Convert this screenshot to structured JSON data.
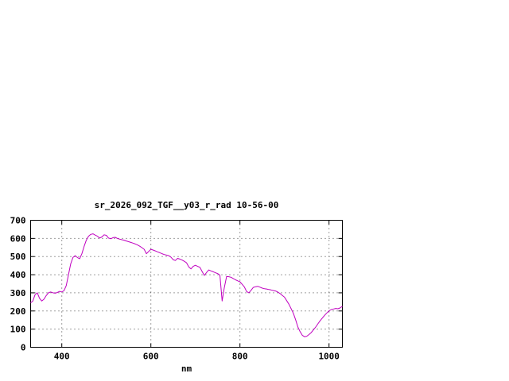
{
  "chart_data": {
    "type": "line",
    "title": "sr_2026_092_TGF__y03_r_rad 10-56-00",
    "xlabel": "nm",
    "ylabel": "",
    "xlim": [
      330,
      1030
    ],
    "ylim": [
      0,
      700
    ],
    "xticks": [
      400,
      600,
      800,
      1000
    ],
    "yticks": [
      0,
      100,
      200,
      300,
      400,
      500,
      600,
      700
    ],
    "grid": true,
    "grid_style": "dotted",
    "legend": "none",
    "line_color": "#c000c0",
    "grid_color": "#404040",
    "text_color": "#000000",
    "background_color": "#ffffff",
    "series": [
      {
        "name": "sr_2026_092_TGF__y03_r_rad",
        "points": [
          [
            330,
            245
          ],
          [
            335,
            255
          ],
          [
            340,
            290
          ],
          [
            345,
            300
          ],
          [
            350,
            270
          ],
          [
            355,
            255
          ],
          [
            360,
            265
          ],
          [
            365,
            285
          ],
          [
            370,
            300
          ],
          [
            375,
            305
          ],
          [
            380,
            300
          ],
          [
            385,
            298
          ],
          [
            390,
            302
          ],
          [
            395,
            308
          ],
          [
            400,
            305
          ],
          [
            405,
            312
          ],
          [
            410,
            340
          ],
          [
            415,
            400
          ],
          [
            420,
            460
          ],
          [
            425,
            495
          ],
          [
            430,
            505
          ],
          [
            435,
            495
          ],
          [
            440,
            488
          ],
          [
            445,
            515
          ],
          [
            450,
            555
          ],
          [
            455,
            590
          ],
          [
            460,
            612
          ],
          [
            465,
            622
          ],
          [
            470,
            625
          ],
          [
            475,
            618
          ],
          [
            480,
            612
          ],
          [
            485,
            602
          ],
          [
            490,
            608
          ],
          [
            495,
            620
          ],
          [
            500,
            617
          ],
          [
            505,
            602
          ],
          [
            510,
            598
          ],
          [
            515,
            604
          ],
          [
            520,
            606
          ],
          [
            525,
            600
          ],
          [
            530,
            596
          ],
          [
            535,
            593
          ],
          [
            540,
            590
          ],
          [
            545,
            586
          ],
          [
            550,
            582
          ],
          [
            555,
            578
          ],
          [
            560,
            574
          ],
          [
            565,
            569
          ],
          [
            570,
            564
          ],
          [
            575,
            557
          ],
          [
            580,
            549
          ],
          [
            585,
            540
          ],
          [
            590,
            516
          ],
          [
            595,
            528
          ],
          [
            600,
            540
          ],
          [
            605,
            536
          ],
          [
            610,
            531
          ],
          [
            615,
            526
          ],
          [
            620,
            521
          ],
          [
            625,
            516
          ],
          [
            630,
            511
          ],
          [
            635,
            508
          ],
          [
            640,
            505
          ],
          [
            645,
            497
          ],
          [
            650,
            483
          ],
          [
            655,
            478
          ],
          [
            660,
            490
          ],
          [
            665,
            486
          ],
          [
            670,
            481
          ],
          [
            675,
            474
          ],
          [
            680,
            466
          ],
          [
            685,
            443
          ],
          [
            690,
            432
          ],
          [
            695,
            446
          ],
          [
            700,
            452
          ],
          [
            705,
            446
          ],
          [
            710,
            441
          ],
          [
            715,
            418
          ],
          [
            720,
            396
          ],
          [
            725,
            412
          ],
          [
            730,
            426
          ],
          [
            735,
            421
          ],
          [
            740,
            416
          ],
          [
            745,
            411
          ],
          [
            750,
            406
          ],
          [
            755,
            398
          ],
          [
            760,
            255
          ],
          [
            765,
            330
          ],
          [
            770,
            390
          ],
          [
            775,
            389
          ],
          [
            780,
            386
          ],
          [
            785,
            379
          ],
          [
            790,
            372
          ],
          [
            795,
            366
          ],
          [
            800,
            361
          ],
          [
            805,
            347
          ],
          [
            810,
            332
          ],
          [
            815,
            307
          ],
          [
            820,
            300
          ],
          [
            825,
            314
          ],
          [
            830,
            330
          ],
          [
            835,
            334
          ],
          [
            840,
            336
          ],
          [
            845,
            331
          ],
          [
            850,
            326
          ],
          [
            855,
            323
          ],
          [
            860,
            321
          ],
          [
            865,
            318
          ],
          [
            870,
            316
          ],
          [
            875,
            313
          ],
          [
            880,
            310
          ],
          [
            885,
            304
          ],
          [
            890,
            296
          ],
          [
            895,
            286
          ],
          [
            900,
            276
          ],
          [
            905,
            257
          ],
          [
            910,
            237
          ],
          [
            915,
            212
          ],
          [
            920,
            187
          ],
          [
            925,
            152
          ],
          [
            930,
            112
          ],
          [
            935,
            86
          ],
          [
            940,
            66
          ],
          [
            945,
            58
          ],
          [
            950,
            61
          ],
          [
            955,
            70
          ],
          [
            960,
            81
          ],
          [
            965,
            96
          ],
          [
            970,
            111
          ],
          [
            975,
            129
          ],
          [
            980,
            146
          ],
          [
            985,
            161
          ],
          [
            990,
            176
          ],
          [
            995,
            189
          ],
          [
            1000,
            201
          ],
          [
            1005,
            208
          ],
          [
            1010,
            211
          ],
          [
            1015,
            214
          ],
          [
            1020,
            212
          ],
          [
            1025,
            217
          ],
          [
            1030,
            226
          ]
        ]
      }
    ]
  }
}
